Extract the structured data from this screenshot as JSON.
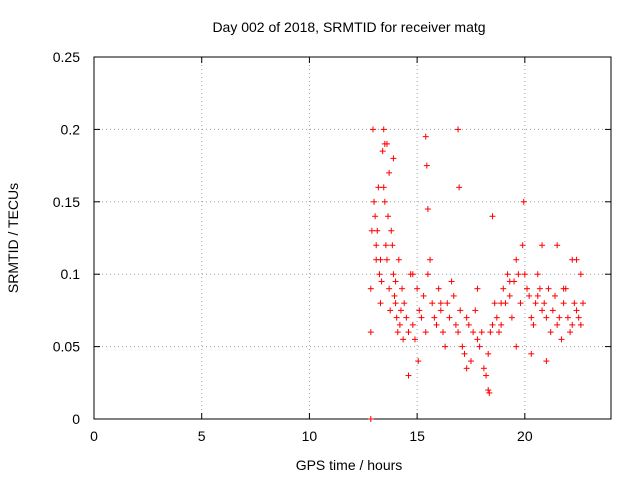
{
  "chart_data": {
    "type": "scatter",
    "title": "Day 002 of 2018, SRMTID for receiver matg",
    "xlabel": "GPS time / hours",
    "ylabel": "SRMTID / TECUs",
    "xlim": [
      0,
      24
    ],
    "ylim": [
      0,
      0.25
    ],
    "x_ticks": [
      0,
      5,
      10,
      15,
      20
    ],
    "x_tick_labels": [
      "0",
      "5",
      "10",
      "15",
      "20"
    ],
    "y_ticks": [
      0,
      0.05,
      0.1,
      0.15,
      0.2,
      0.25
    ],
    "y_tick_labels": [
      "0",
      "0.05",
      "0.1",
      "0.15",
      "0.2",
      "0.25"
    ],
    "grid": true,
    "marker": "+",
    "color": "#ff0000",
    "series": [
      {
        "name": "SRMTID",
        "note": "approximate sample of the dense point cloud, read from the plot",
        "x": [
          12.85,
          12.85,
          12.85,
          12.9,
          12.95,
          13.0,
          13.05,
          13.1,
          13.15,
          13.2,
          13.25,
          13.3,
          13.35,
          13.4,
          13.45,
          13.5,
          13.55,
          13.6,
          13.65,
          13.7,
          13.75,
          13.8,
          13.85,
          13.9,
          13.95,
          14.0,
          14.05,
          14.1,
          14.15,
          14.2,
          14.25,
          14.3,
          14.35,
          14.4,
          14.5,
          14.6,
          14.7,
          14.8,
          14.9,
          15.0,
          15.1,
          15.2,
          15.3,
          15.4,
          15.5,
          15.6,
          15.7,
          15.8,
          15.9,
          16.0,
          16.1,
          16.2,
          16.3,
          16.4,
          16.5,
          16.6,
          16.7,
          16.8,
          16.9,
          17.0,
          17.1,
          17.2,
          17.3,
          17.4,
          17.5,
          17.6,
          17.7,
          17.8,
          17.9,
          18.0,
          18.1,
          18.2,
          18.3,
          18.4,
          18.5,
          18.6,
          18.7,
          18.8,
          18.9,
          19.0,
          19.1,
          19.2,
          19.3,
          19.4,
          19.5,
          19.6,
          19.7,
          19.8,
          19.9,
          20.0,
          20.1,
          20.2,
          20.3,
          20.4,
          20.5,
          20.6,
          20.7,
          20.8,
          20.9,
          21.0,
          21.1,
          21.2,
          21.3,
          21.4,
          21.5,
          21.6,
          21.7,
          21.8,
          21.9,
          22.0,
          22.1,
          22.2,
          22.3,
          22.4,
          22.5,
          22.6,
          22.7,
          13.1,
          13.5,
          13.7,
          13.9,
          15.4,
          15.45,
          16.9,
          13.45,
          13.6,
          15.5,
          16.95,
          18.5,
          19.95,
          20.8,
          21.5,
          22.2,
          14.6,
          15.05,
          17.3,
          18.3,
          18.35,
          19.6,
          20.3,
          21.0,
          22.6,
          13.3,
          14.0,
          14.8,
          16.1,
          17.8,
          18.9,
          19.3,
          20.6,
          21.8,
          22.4
        ],
        "y": [
          0.0,
          0.06,
          0.09,
          0.13,
          0.2,
          0.15,
          0.14,
          0.12,
          0.13,
          0.16,
          0.1,
          0.08,
          0.095,
          0.185,
          0.2,
          0.15,
          0.12,
          0.11,
          0.14,
          0.09,
          0.075,
          0.13,
          0.12,
          0.1,
          0.085,
          0.08,
          0.07,
          0.06,
          0.11,
          0.065,
          0.075,
          0.09,
          0.055,
          0.08,
          0.07,
          0.06,
          0.1,
          0.065,
          0.055,
          0.09,
          0.075,
          0.07,
          0.085,
          0.06,
          0.1,
          0.11,
          0.08,
          0.07,
          0.065,
          0.09,
          0.075,
          0.06,
          0.05,
          0.08,
          0.07,
          0.095,
          0.085,
          0.065,
          0.06,
          0.075,
          0.05,
          0.045,
          0.07,
          0.065,
          0.04,
          0.06,
          0.075,
          0.055,
          0.05,
          0.06,
          0.035,
          0.03,
          0.045,
          0.06,
          0.065,
          0.08,
          0.07,
          0.06,
          0.065,
          0.09,
          0.08,
          0.1,
          0.085,
          0.07,
          0.095,
          0.11,
          0.1,
          0.08,
          0.12,
          0.1,
          0.09,
          0.085,
          0.07,
          0.065,
          0.08,
          0.1,
          0.09,
          0.075,
          0.08,
          0.07,
          0.09,
          0.06,
          0.075,
          0.085,
          0.065,
          0.07,
          0.055,
          0.08,
          0.09,
          0.07,
          0.06,
          0.065,
          0.08,
          0.075,
          0.07,
          0.065,
          0.08,
          0.11,
          0.19,
          0.17,
          0.18,
          0.195,
          0.175,
          0.2,
          0.16,
          0.19,
          0.145,
          0.16,
          0.14,
          0.15,
          0.12,
          0.12,
          0.11,
          0.03,
          0.04,
          0.035,
          0.02,
          0.018,
          0.05,
          0.045,
          0.04,
          0.1,
          0.11,
          0.095,
          0.1,
          0.08,
          0.09,
          0.08,
          0.095,
          0.085,
          0.09,
          0.11
        ]
      }
    ]
  }
}
